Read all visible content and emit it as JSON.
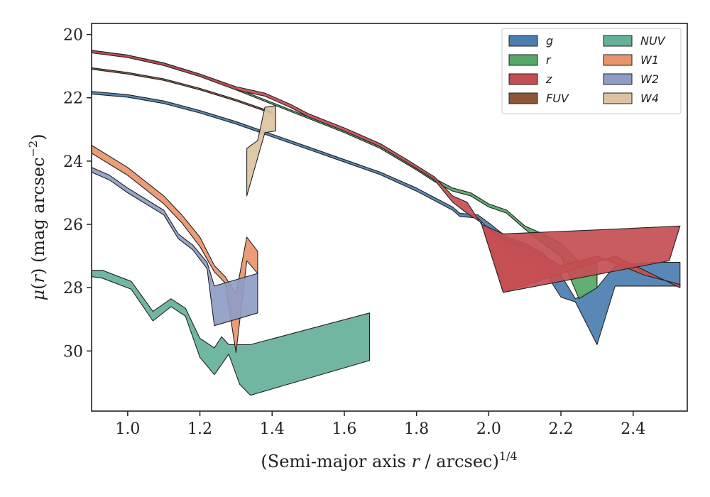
{
  "chart_data": {
    "type": "area",
    "xlabel": "(Semi-major axis r / arcsec)^{1/4}",
    "ylabel": "μ(r) (mag arcsec^{−2})",
    "xlim": [
      0.9,
      2.55
    ],
    "ylim": [
      31.9,
      19.65
    ],
    "y_inverted": true,
    "x_ticks": [
      "1.0",
      "1.2",
      "1.4",
      "1.6",
      "1.8",
      "2.0",
      "2.2",
      "2.4"
    ],
    "x_tick_values": [
      1.0,
      1.2,
      1.4,
      1.6,
      1.8,
      2.0,
      2.2,
      2.4
    ],
    "y_ticks": [
      "20",
      "22",
      "24",
      "26",
      "28",
      "30"
    ],
    "y_tick_values": [
      20,
      22,
      24,
      26,
      28,
      30
    ],
    "legend_position": "top-right",
    "legend_columns": 2,
    "series": [
      {
        "name": "g",
        "color": "#4c7eb0",
        "upper": [
          [
            0.9,
            21.8
          ],
          [
            1.0,
            21.9
          ],
          [
            1.1,
            22.1
          ],
          [
            1.2,
            22.4
          ],
          [
            1.3,
            22.75
          ],
          [
            1.4,
            23.15
          ],
          [
            1.5,
            23.55
          ],
          [
            1.6,
            23.95
          ],
          [
            1.7,
            24.35
          ],
          [
            1.8,
            24.85
          ],
          [
            1.9,
            25.45
          ],
          [
            1.92,
            25.65
          ],
          [
            1.97,
            25.7
          ],
          [
            2.0,
            25.95
          ],
          [
            2.05,
            26.4
          ],
          [
            2.1,
            26.6
          ],
          [
            2.15,
            26.9
          ],
          [
            2.2,
            27.6
          ],
          [
            2.24,
            28.35
          ],
          [
            2.3,
            28.0
          ],
          [
            2.35,
            27.3
          ],
          [
            2.45,
            27.2
          ],
          [
            2.53,
            27.2
          ]
        ],
        "lower": [
          [
            0.9,
            21.88
          ],
          [
            1.0,
            21.98
          ],
          [
            1.1,
            22.18
          ],
          [
            1.2,
            22.48
          ],
          [
            1.3,
            22.83
          ],
          [
            1.4,
            23.23
          ],
          [
            1.5,
            23.63
          ],
          [
            1.6,
            24.03
          ],
          [
            1.7,
            24.43
          ],
          [
            1.8,
            24.95
          ],
          [
            1.9,
            25.55
          ],
          [
            1.92,
            25.75
          ],
          [
            1.97,
            25.8
          ],
          [
            2.0,
            26.15
          ],
          [
            2.05,
            26.9
          ],
          [
            2.1,
            27.1
          ],
          [
            2.15,
            27.4
          ],
          [
            2.2,
            28.3
          ],
          [
            2.24,
            28.45
          ],
          [
            2.3,
            29.8
          ],
          [
            2.35,
            27.95
          ],
          [
            2.45,
            27.95
          ],
          [
            2.53,
            27.95
          ]
        ]
      },
      {
        "name": "r",
        "color": "#55a868",
        "upper": [
          [
            0.9,
            20.5
          ],
          [
            1.0,
            20.65
          ],
          [
            1.1,
            20.9
          ],
          [
            1.2,
            21.25
          ],
          [
            1.3,
            21.7
          ],
          [
            1.4,
            22.15
          ],
          [
            1.5,
            22.6
          ],
          [
            1.6,
            23.05
          ],
          [
            1.7,
            23.55
          ],
          [
            1.8,
            24.2
          ],
          [
            1.85,
            24.55
          ],
          [
            1.9,
            24.85
          ],
          [
            1.95,
            25.0
          ],
          [
            2.0,
            25.35
          ],
          [
            2.05,
            25.55
          ],
          [
            2.1,
            26.05
          ],
          [
            2.15,
            26.3
          ],
          [
            2.2,
            26.6
          ],
          [
            2.25,
            27.2
          ],
          [
            2.3,
            27.1
          ]
        ],
        "lower": [
          [
            0.9,
            20.55
          ],
          [
            1.0,
            20.7
          ],
          [
            1.1,
            20.95
          ],
          [
            1.2,
            21.3
          ],
          [
            1.3,
            21.75
          ],
          [
            1.4,
            22.2
          ],
          [
            1.5,
            22.65
          ],
          [
            1.6,
            23.1
          ],
          [
            1.7,
            23.6
          ],
          [
            1.8,
            24.28
          ],
          [
            1.85,
            24.65
          ],
          [
            1.9,
            24.95
          ],
          [
            1.95,
            25.1
          ],
          [
            2.0,
            25.45
          ],
          [
            2.05,
            25.65
          ],
          [
            2.1,
            26.15
          ],
          [
            2.15,
            26.6
          ],
          [
            2.2,
            27.0
          ],
          [
            2.25,
            28.35
          ],
          [
            2.3,
            28.0
          ]
        ]
      },
      {
        "name": "z",
        "color": "#c44e52",
        "upper": [
          [
            0.9,
            20.5
          ],
          [
            1.0,
            20.65
          ],
          [
            1.1,
            20.9
          ],
          [
            1.2,
            21.25
          ],
          [
            1.3,
            21.65
          ],
          [
            1.38,
            21.85
          ],
          [
            1.45,
            22.2
          ],
          [
            1.5,
            22.5
          ],
          [
            1.6,
            22.95
          ],
          [
            1.7,
            23.45
          ],
          [
            1.78,
            24.0
          ],
          [
            1.85,
            24.5
          ],
          [
            1.9,
            25.1
          ],
          [
            1.94,
            25.3
          ],
          [
            1.98,
            26.0
          ],
          [
            2.05,
            26.5
          ],
          [
            2.1,
            26.7
          ],
          [
            2.15,
            27.0
          ],
          [
            2.2,
            27.3
          ],
          [
            2.3,
            27.0
          ],
          [
            2.43,
            27.6
          ],
          [
            2.53,
            27.9
          ]
        ],
        "lower": [
          [
            0.9,
            20.58
          ],
          [
            1.0,
            20.73
          ],
          [
            1.1,
            20.98
          ],
          [
            1.2,
            21.33
          ],
          [
            1.3,
            21.75
          ],
          [
            1.38,
            21.95
          ],
          [
            1.45,
            22.3
          ],
          [
            1.5,
            22.6
          ],
          [
            1.6,
            23.05
          ],
          [
            1.7,
            23.55
          ],
          [
            1.78,
            24.1
          ],
          [
            1.85,
            24.6
          ],
          [
            1.9,
            25.3
          ],
          [
            1.94,
            25.65
          ],
          [
            1.98,
            25.95
          ],
          [
            2.04,
            28.15
          ],
          [
            2.35,
            27.0
          ],
          [
            2.53,
            28.0
          ]
        ],
        "extra_patch": [
          [
            1.98,
            26.0
          ],
          [
            2.04,
            28.15
          ],
          [
            2.5,
            27.15
          ],
          [
            2.53,
            26.05
          ],
          [
            2.35,
            26.15
          ],
          [
            2.04,
            26.3
          ]
        ]
      },
      {
        "name": "FUV",
        "color": "#8c5639",
        "upper": [
          [
            0.9,
            21.05
          ],
          [
            1.0,
            21.2
          ],
          [
            1.1,
            21.4
          ],
          [
            1.2,
            21.7
          ],
          [
            1.3,
            22.05
          ],
          [
            1.4,
            22.45
          ]
        ],
        "lower": [
          [
            0.9,
            21.1
          ],
          [
            1.0,
            21.25
          ],
          [
            1.1,
            21.45
          ],
          [
            1.2,
            21.75
          ],
          [
            1.3,
            22.1
          ],
          [
            1.4,
            22.5
          ]
        ]
      },
      {
        "name": "NUV",
        "color": "#64b09a",
        "upper": [
          [
            0.9,
            27.45
          ],
          [
            0.93,
            27.45
          ],
          [
            1.01,
            27.8
          ],
          [
            1.07,
            28.75
          ],
          [
            1.12,
            28.35
          ],
          [
            1.16,
            28.65
          ],
          [
            1.2,
            29.6
          ],
          [
            1.24,
            29.9
          ],
          [
            1.26,
            29.55
          ],
          [
            1.28,
            29.8
          ],
          [
            1.3,
            29.8
          ],
          [
            1.34,
            29.8
          ],
          [
            1.67,
            28.8
          ]
        ],
        "lower": [
          [
            0.9,
            27.65
          ],
          [
            0.93,
            27.7
          ],
          [
            1.01,
            28.05
          ],
          [
            1.07,
            29.05
          ],
          [
            1.12,
            28.6
          ],
          [
            1.16,
            28.9
          ],
          [
            1.2,
            30.2
          ],
          [
            1.24,
            30.75
          ],
          [
            1.28,
            30.1
          ],
          [
            1.31,
            31.05
          ],
          [
            1.34,
            31.4
          ],
          [
            1.67,
            30.3
          ]
        ]
      },
      {
        "name": "W1",
        "color": "#e8956b",
        "upper": [
          [
            0.9,
            23.5
          ],
          [
            1.0,
            24.2
          ],
          [
            1.1,
            25.1
          ],
          [
            1.15,
            25.7
          ],
          [
            1.2,
            26.4
          ],
          [
            1.24,
            27.3
          ],
          [
            1.27,
            27.65
          ],
          [
            1.3,
            28.2
          ],
          [
            1.33,
            26.4
          ],
          [
            1.36,
            26.85
          ]
        ],
        "lower": [
          [
            0.9,
            23.75
          ],
          [
            1.0,
            24.45
          ],
          [
            1.1,
            25.35
          ],
          [
            1.15,
            25.95
          ],
          [
            1.2,
            26.7
          ],
          [
            1.24,
            27.5
          ],
          [
            1.27,
            27.85
          ],
          [
            1.3,
            30.05
          ],
          [
            1.33,
            27.15
          ],
          [
            1.36,
            27.55
          ]
        ]
      },
      {
        "name": "W2",
        "color": "#8e9dc5",
        "upper": [
          [
            0.9,
            24.2
          ],
          [
            0.95,
            24.45
          ],
          [
            1.0,
            24.85
          ],
          [
            1.1,
            25.55
          ],
          [
            1.14,
            26.3
          ],
          [
            1.18,
            26.65
          ],
          [
            1.22,
            27.2
          ],
          [
            1.24,
            27.95
          ],
          [
            1.36,
            27.55
          ]
        ],
        "lower": [
          [
            0.9,
            24.35
          ],
          [
            0.95,
            24.6
          ],
          [
            1.0,
            25.0
          ],
          [
            1.1,
            25.7
          ],
          [
            1.14,
            26.45
          ],
          [
            1.18,
            26.8
          ],
          [
            1.22,
            27.4
          ],
          [
            1.24,
            29.2
          ],
          [
            1.36,
            28.8
          ]
        ]
      },
      {
        "name": "W4",
        "color": "#dcc3a1",
        "upper": [
          [
            1.33,
            23.6
          ],
          [
            1.36,
            23.35
          ],
          [
            1.38,
            22.3
          ],
          [
            1.41,
            22.25
          ]
        ],
        "lower": [
          [
            1.33,
            25.1
          ],
          [
            1.36,
            23.9
          ],
          [
            1.38,
            23.1
          ],
          [
            1.41,
            23.05
          ]
        ]
      }
    ]
  }
}
